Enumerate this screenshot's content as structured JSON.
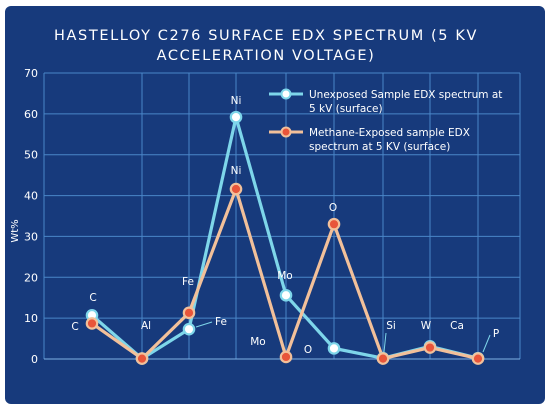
{
  "chart_data": {
    "type": "line",
    "title_lines": [
      "HASTELLOY C276 SURFACE EDX SPECTRUM (5 KV",
      "ACCELERATION VOLTAGE)"
    ],
    "ylabel": "Wt%",
    "ylim": [
      0,
      70
    ],
    "yticks": [
      0,
      10,
      20,
      30,
      40,
      50,
      60,
      70
    ],
    "grid": true,
    "legend_position": "top-right",
    "categories": [
      "C",
      "Al",
      "Fe",
      "Ni",
      "Mo",
      "O",
      "Si",
      "W",
      "P"
    ],
    "series": [
      {
        "name": "Unexposed Sample EDX spectrum at 5 kV (surface)",
        "legend_lines": [
          "Unexposed Sample EDX spectrum at",
          "5 kV (surface)"
        ],
        "color": "#7ed6ea",
        "marker_fill": "#ffffff",
        "values": [
          10.7,
          0.1,
          7.3,
          59.2,
          15.6,
          2.6,
          0.2,
          3.1,
          0.2
        ],
        "labels": [
          "C",
          "",
          "Fe",
          "Ni",
          "Mo",
          "O",
          "",
          "",
          ""
        ]
      },
      {
        "name": "Methane-Exposed sample EDX spectrum at 5 KV (surface)",
        "legend_lines": [
          "Methane-Exposed sample EDX",
          "spectrum at 5 KV (surface)"
        ],
        "color": "#f2c09a",
        "marker_fill": "#e8553a",
        "values": [
          8.7,
          0.1,
          11.3,
          41.6,
          0.5,
          33.0,
          0.1,
          2.8,
          0.1
        ],
        "labels": [
          "C",
          "Al",
          "Fe",
          "Ni",
          "Mo",
          "O",
          "Si",
          "W",
          "P"
        ]
      }
    ],
    "extra_labels": [
      "Ca"
    ]
  }
}
